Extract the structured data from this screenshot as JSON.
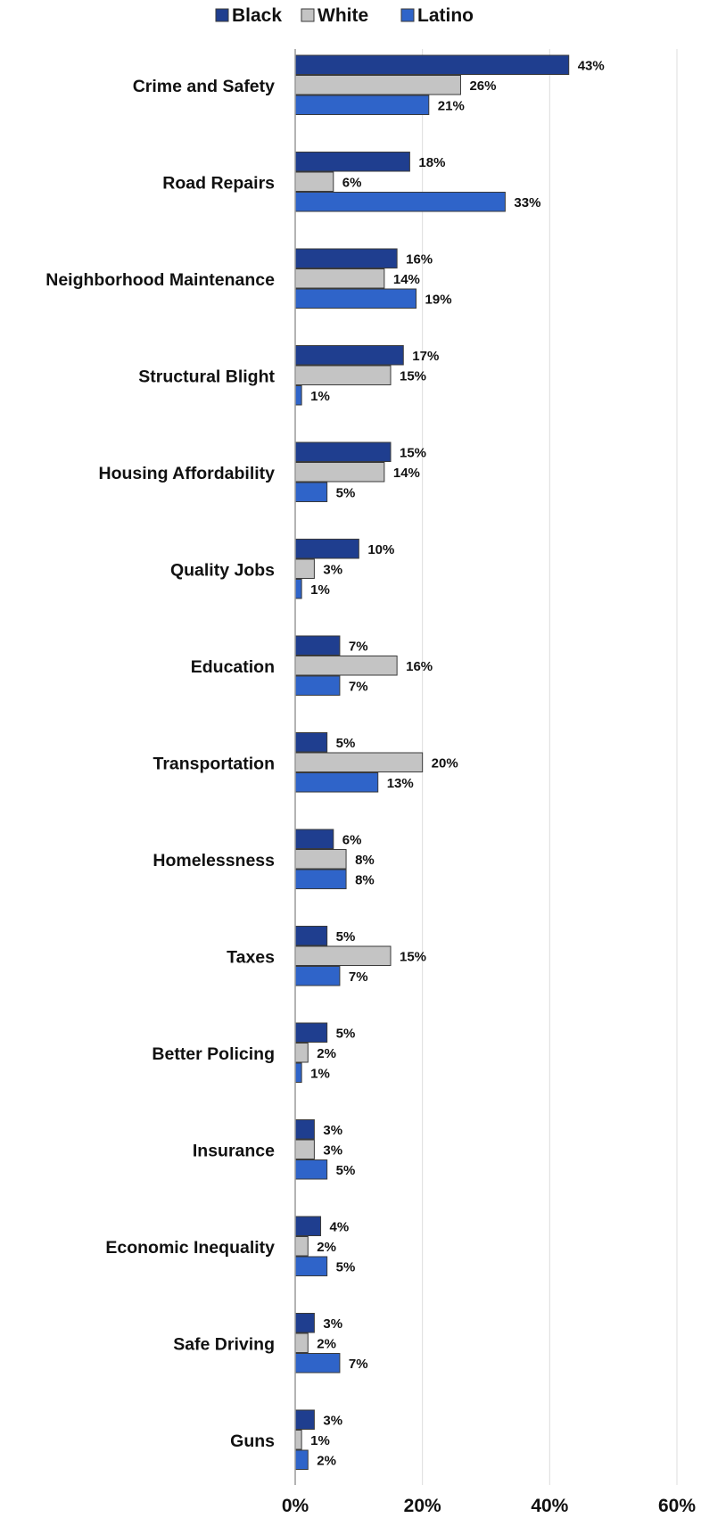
{
  "chart_data": {
    "type": "bar",
    "orientation": "horizontal",
    "categories": [
      "Crime and Safety",
      "Road Repairs",
      "Neighborhood Maintenance",
      "Structural Blight",
      "Housing Affordability",
      "Quality Jobs",
      "Education",
      "Transportation",
      "Homelessness",
      "Taxes",
      "Better Policing",
      "Insurance",
      "Economic Inequality",
      "Safe Driving",
      "Guns"
    ],
    "series": [
      {
        "name": "Black",
        "color": "#1f3e8f",
        "values": [
          43,
          18,
          16,
          17,
          15,
          10,
          7,
          5,
          6,
          5,
          5,
          3,
          4,
          3,
          3
        ]
      },
      {
        "name": "White",
        "color": "#c4c4c4",
        "values": [
          26,
          6,
          14,
          15,
          14,
          3,
          16,
          20,
          8,
          15,
          2,
          3,
          2,
          2,
          1
        ]
      },
      {
        "name": "Latino",
        "color": "#2f64c9",
        "values": [
          21,
          33,
          19,
          1,
          5,
          1,
          7,
          13,
          8,
          7,
          1,
          5,
          5,
          7,
          2
        ]
      }
    ],
    "value_labels": [
      [
        "43%",
        "18%",
        "16%",
        "17%",
        "15%",
        "10%",
        "7%",
        "5%",
        "6%",
        "5%",
        "5%",
        "3%",
        "4%",
        "3%",
        "3%"
      ],
      [
        "26%",
        "6%",
        "14%",
        "15%",
        "14%",
        "3%",
        "16%",
        "20%",
        "8%",
        "15%",
        "2%",
        "3%",
        "2%",
        "2%",
        "1%"
      ],
      [
        "21%",
        "33%",
        "19%",
        "1%",
        "5%",
        "1%",
        "7%",
        "13%",
        "8%",
        "7%",
        "1%",
        "5%",
        "5%",
        "7%",
        "2%"
      ]
    ],
    "xlim": [
      0,
      60
    ],
    "xticks": [
      "0%",
      "20%",
      "40%",
      "60%"
    ],
    "xtick_values": [
      0,
      20,
      40,
      60
    ],
    "grid": "vertical",
    "legend": "top-center",
    "title": "",
    "xlabel": "",
    "ylabel": ""
  }
}
